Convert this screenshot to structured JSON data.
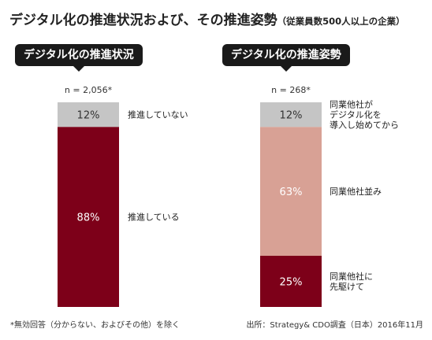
{
  "title": "デジタル化の推進状況および、その推進姿勢",
  "subtitle": "（従業員数500人以上の企業）",
  "footnote_left": "*無効回答（分からない、およびその他）を除く",
  "footnote_right": "出所：Strategy& CDO調査（日本）2016年11月",
  "colors": {
    "gray": "#c5c5c5",
    "dark_red": "#7d0019",
    "pink": "#d8a195",
    "pill": "#1a1a1a"
  },
  "chart_data": [
    {
      "type": "bar",
      "stacked": true,
      "title": "デジタル化の推進状況",
      "n_label": "n = 2,056*",
      "ylim": [
        0,
        100
      ],
      "segments": [
        {
          "label": "推進している",
          "value": 88,
          "value_label": "88%",
          "color": "#7d0019"
        },
        {
          "label": "推進していない",
          "value": 12,
          "value_label": "12%",
          "color": "#c5c5c5"
        }
      ]
    },
    {
      "type": "bar",
      "stacked": true,
      "title": "デジタル化の推進姿勢",
      "n_label": "n = 268*",
      "ylim": [
        0,
        100
      ],
      "segments": [
        {
          "label": "同業他社に\n先駆けて",
          "value": 25,
          "value_label": "25%",
          "color": "#7d0019"
        },
        {
          "label": "同業他社並み",
          "value": 63,
          "value_label": "63%",
          "color": "#d8a195"
        },
        {
          "label": "同業他社が\nデジタル化を\n導入し始めてから",
          "value": 12,
          "value_label": "12%",
          "color": "#c5c5c5"
        }
      ]
    }
  ]
}
